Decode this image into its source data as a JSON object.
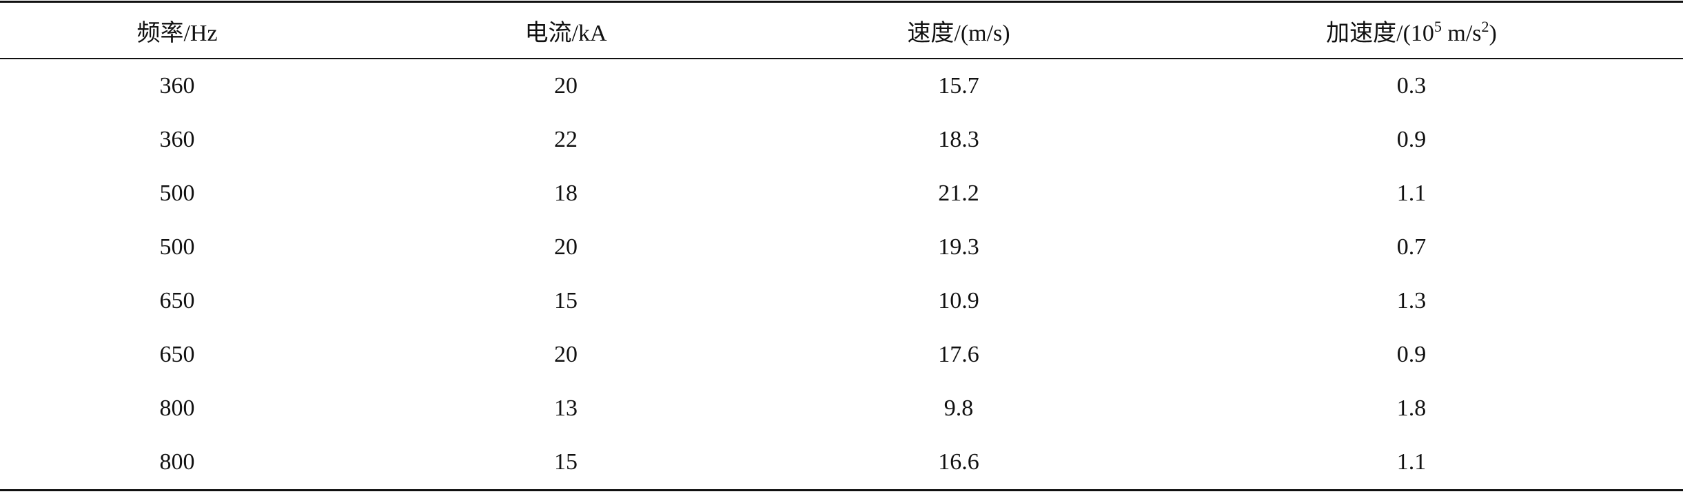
{
  "table": {
    "header": [
      "频率/Hz",
      "电流/kA",
      "速度/(m/s)",
      {
        "parts": [
          "加速度/(10",
          "5",
          " m/s",
          "2",
          ")"
        ]
      }
    ],
    "rows": [
      [
        360,
        20,
        15.7,
        0.3
      ],
      [
        360,
        22,
        18.3,
        0.9
      ],
      [
        500,
        18,
        21.2,
        1.1
      ],
      [
        500,
        20,
        19.3,
        0.7
      ],
      [
        650,
        15,
        10.9,
        1.3
      ],
      [
        650,
        20,
        17.6,
        0.9
      ],
      [
        800,
        13,
        9.8,
        1.8
      ],
      [
        800,
        15,
        16.6,
        1.1
      ]
    ]
  }
}
